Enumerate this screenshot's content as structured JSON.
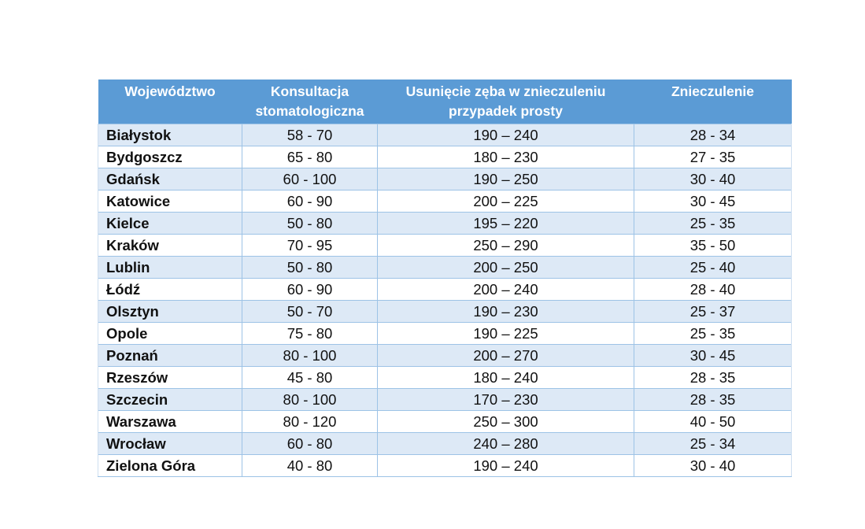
{
  "table": {
    "headers": [
      "Województwo",
      "Konsultacja stomatologiczna",
      "Usunięcie zęba w znieczuleniu przypadek prosty",
      "Znieczulenie"
    ],
    "rows": [
      [
        "Białystok",
        "58 - 70",
        "190 – 240",
        "28 - 34"
      ],
      [
        "Bydgoszcz",
        "65 - 80",
        "180 – 230",
        "27 - 35"
      ],
      [
        "Gdańsk",
        "60 - 100",
        "190 – 250",
        "30 - 40"
      ],
      [
        "Katowice",
        "60 - 90",
        "200 – 225",
        "30 - 45"
      ],
      [
        "Kielce",
        "50 - 80",
        "195 – 220",
        "25 - 35"
      ],
      [
        "Kraków",
        "70 - 95",
        "250 – 290",
        "35 - 50"
      ],
      [
        "Lublin",
        "50 - 80",
        "200 – 250",
        "25 - 40"
      ],
      [
        "Łódź",
        "60 - 90",
        "200 – 240",
        "28 - 40"
      ],
      [
        "Olsztyn",
        "50 - 70",
        "190 – 230",
        "25 - 37"
      ],
      [
        "Opole",
        "75 - 80",
        "190 – 225",
        "25 - 35"
      ],
      [
        "Poznań",
        "80 - 100",
        "200 – 270",
        "30 - 45"
      ],
      [
        "Rzeszów",
        "45 - 80",
        "180 – 240",
        "28 - 35"
      ],
      [
        "Szczecin",
        "80 - 100",
        "170 – 230",
        "28 - 35"
      ],
      [
        "Warszawa",
        "80 - 120",
        "250 – 300",
        "40 - 50"
      ],
      [
        "Wrocław",
        "60 - 80",
        "240 – 280",
        "25 - 34"
      ],
      [
        "Zielona Góra",
        "40 - 80",
        "190 – 240",
        "30 - 40"
      ]
    ]
  },
  "colors": {
    "header_bg": "#5b9bd5",
    "header_text": "#ffffff",
    "band_row_bg": "#dde9f6",
    "plain_row_bg": "#ffffff",
    "grid_line": "#9dc3e6"
  }
}
